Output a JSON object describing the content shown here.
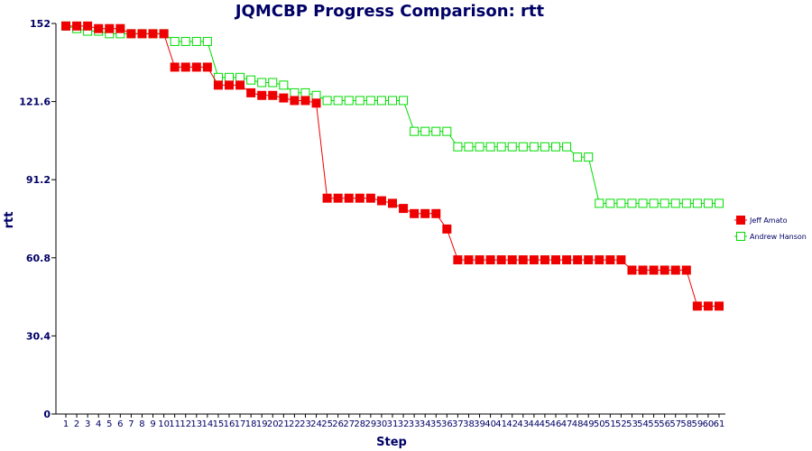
{
  "chart_data": {
    "type": "line",
    "title": "JQMCBP Progress Comparison: rtt",
    "xlabel": "Step",
    "ylabel": "rtt",
    "ylim": [
      0,
      152
    ],
    "yticks": [
      0,
      30.4,
      60.8,
      91.2,
      121.6,
      152
    ],
    "ytick_labels": [
      "0",
      "30.4",
      "60.8",
      "91.2",
      "121.6",
      "152"
    ],
    "x": [
      1,
      2,
      3,
      4,
      5,
      6,
      7,
      8,
      9,
      10,
      11,
      12,
      13,
      14,
      15,
      16,
      17,
      18,
      19,
      20,
      21,
      22,
      23,
      24,
      25,
      26,
      27,
      28,
      29,
      30,
      31,
      32,
      33,
      34,
      35,
      36,
      37,
      38,
      39,
      40,
      41,
      42,
      43,
      44,
      45,
      46,
      47,
      48,
      49,
      50,
      51,
      52,
      53,
      54,
      55,
      56,
      57,
      58,
      59,
      60,
      61
    ],
    "legend_position": "right",
    "grid": false,
    "series": [
      {
        "name": "Jeff Amato",
        "color": "#ee0000",
        "marker": "filled-square",
        "values": [
          151,
          151,
          151,
          150,
          150,
          150,
          148,
          148,
          148,
          148,
          135,
          135,
          135,
          135,
          128,
          128,
          128,
          125,
          124,
          124,
          123,
          122,
          122,
          121,
          84,
          84,
          84,
          84,
          84,
          83,
          82,
          80,
          78,
          78,
          78,
          72,
          60,
          60,
          60,
          60,
          60,
          60,
          60,
          60,
          60,
          60,
          60,
          60,
          60,
          60,
          60,
          60,
          56,
          56,
          56,
          56,
          56,
          56,
          42,
          42,
          42
        ]
      },
      {
        "name": "Andrew Hanson",
        "color": "#00dd00",
        "marker": "hollow-square",
        "values": [
          151,
          150,
          149,
          149,
          148,
          148,
          148,
          148,
          148,
          148,
          145,
          145,
          145,
          145,
          131,
          131,
          131,
          130,
          129,
          129,
          128,
          125,
          125,
          124,
          122,
          122,
          122,
          122,
          122,
          122,
          122,
          122,
          110,
          110,
          110,
          110,
          104,
          104,
          104,
          104,
          104,
          104,
          104,
          104,
          104,
          104,
          104,
          100,
          100,
          82,
          82,
          82,
          82,
          82,
          82,
          82,
          82,
          82,
          82,
          82,
          82
        ]
      }
    ]
  }
}
